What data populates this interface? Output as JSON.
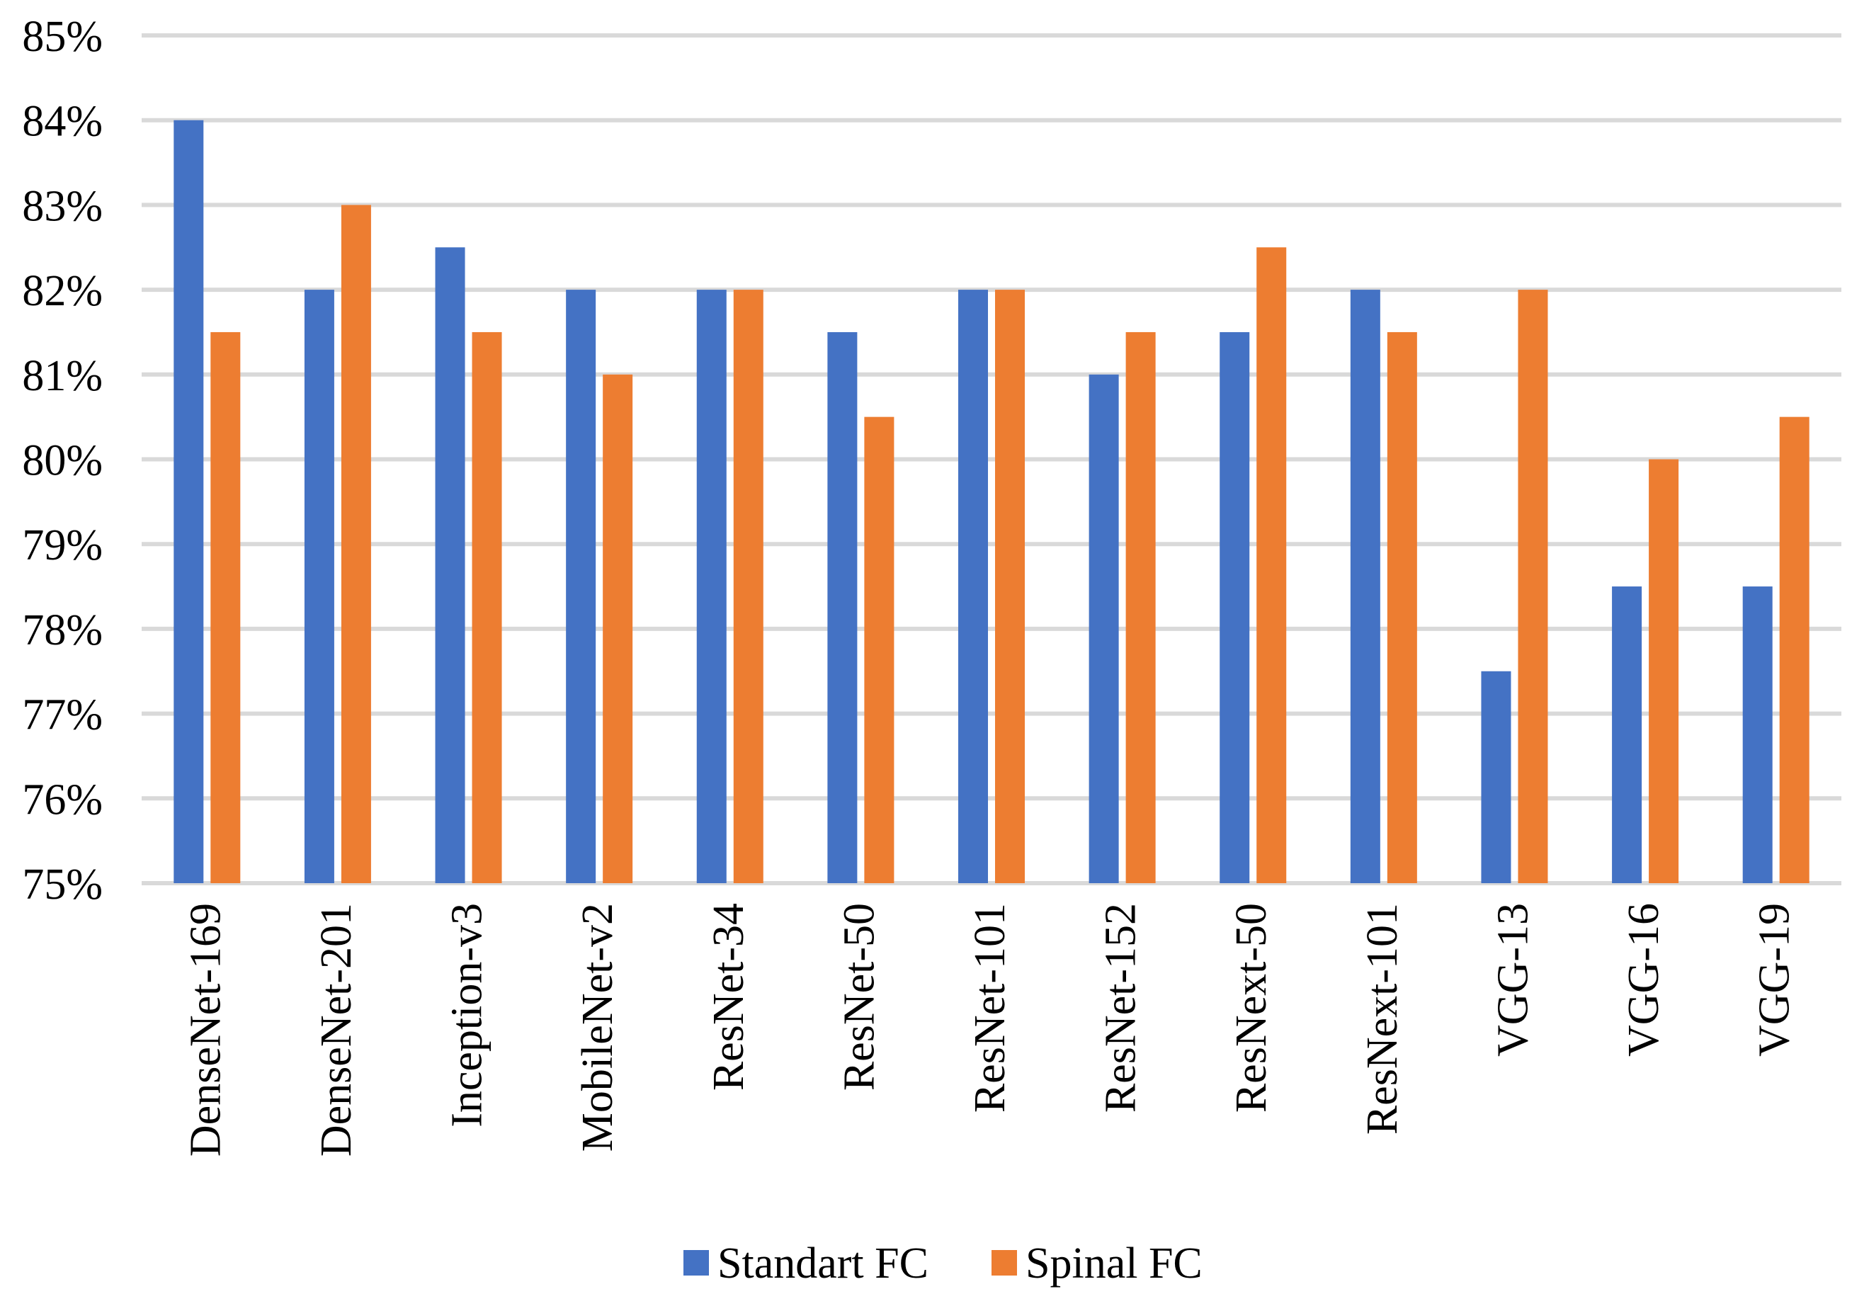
{
  "chart_data": {
    "type": "bar",
    "title": "",
    "xlabel": "",
    "ylabel": "",
    "ylim": [
      75,
      85
    ],
    "y_ticks": [
      "75%",
      "76%",
      "77%",
      "78%",
      "79%",
      "80%",
      "81%",
      "82%",
      "83%",
      "84%",
      "85%"
    ],
    "grid": true,
    "legend_position": "bottom",
    "categories": [
      "DenseNet-169",
      "DenseNet-201",
      "Inception-v3",
      "MobileNet-v2",
      "ResNet-34",
      "ResNet-50",
      "ResNet-101",
      "ResNet-152",
      "ResNext-50",
      "ResNext-101",
      "VGG-13",
      "VGG-16",
      "VGG-19"
    ],
    "series": [
      {
        "name": "Standart FC",
        "color": "#4472c4",
        "values": [
          84,
          82,
          82.5,
          82,
          82,
          81.5,
          82,
          81,
          81.5,
          82,
          77.5,
          78.5,
          78.5
        ]
      },
      {
        "name": "Spinal FC",
        "color": "#ed7d31",
        "values": [
          81.5,
          83,
          81.5,
          81,
          82,
          80.5,
          82,
          81.5,
          82.5,
          81.5,
          82,
          80,
          80.5
        ]
      }
    ]
  }
}
